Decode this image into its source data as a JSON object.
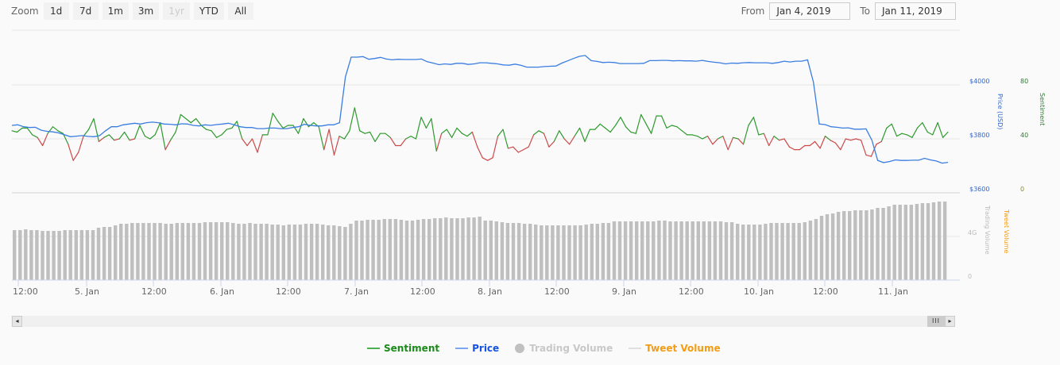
{
  "range_selector": {
    "zoom_label": "Zoom",
    "buttons": [
      {
        "label": "1d",
        "disabled": false
      },
      {
        "label": "7d",
        "disabled": false
      },
      {
        "label": "1m",
        "disabled": false
      },
      {
        "label": "3m",
        "disabled": false
      },
      {
        "label": "1yr",
        "disabled": true
      },
      {
        "label": "YTD",
        "disabled": false
      },
      {
        "label": "All",
        "disabled": false
      }
    ]
  },
  "date_range": {
    "from_label": "From",
    "from_value": "Jan 4, 2019",
    "to_label": "To",
    "to_value": "Jan 11, 2019"
  },
  "axes": {
    "price_title": "Price (USD)",
    "price_ticks": [
      "$4000",
      "$3800",
      "$3600"
    ],
    "sentiment_title": "Sentiment",
    "sentiment_ticks": [
      "80",
      "40",
      "0"
    ],
    "trading_volume_title": "Trading Volume",
    "tweet_volume_title": "Tweet Volume",
    "volume_ticks": [
      "4G",
      "0"
    ],
    "x_ticks": [
      "12:00",
      "5. Jan",
      "12:00",
      "6. Jan",
      "12:00",
      "7. Jan",
      "12:00",
      "8. Jan",
      "12:00",
      "9. Jan",
      "12:00",
      "10. Jan",
      "12:00",
      "11. Jan"
    ]
  },
  "scrollbar": {
    "left_arrow": "◂",
    "thumb_grip": "III",
    "right_arrow": "▸"
  },
  "legend": [
    {
      "label": "Sentiment",
      "color": "#1a8a1a",
      "symbol": "#4caf50"
    },
    {
      "label": "Price",
      "color": "#1652e0",
      "symbol": "#7ca7ee"
    },
    {
      "label": "Trading Volume",
      "color": "#c8c8c8",
      "symbol": "#c0c0c0"
    },
    {
      "label": "Tweet Volume",
      "color": "#f39c12",
      "symbol": "#e0e0e0"
    }
  ],
  "colors": {
    "sentiment_positive": "#2e9a2e",
    "sentiment_negative": "#cc4a4a",
    "price": "#3a7de0",
    "volume_bar": "#bfbfbf",
    "price_axis": "#3366cc",
    "sentiment_axis": "#2e7d32",
    "tweet_axis": "#f39c12",
    "grid": "#e6e6e6"
  },
  "chart_data": {
    "type": "line",
    "title": "",
    "x_range": [
      "Jan 4, 2019 12:00",
      "Jan 11, 2019 ~20:00"
    ],
    "x_tick_labels": [
      "12:00",
      "5. Jan",
      "12:00",
      "6. Jan",
      "12:00",
      "7. Jan",
      "12:00",
      "8. Jan",
      "12:00",
      "9. Jan",
      "12:00",
      "10. Jan",
      "12:00",
      "11. Jan"
    ],
    "series": [
      {
        "name": "Price",
        "axis": "Price (USD)",
        "ylim": [
          3600,
          4200
        ],
        "values": [
          3850,
          3852,
          3845,
          3842,
          3843,
          3832,
          3828,
          3826,
          3822,
          3815,
          3808,
          3810,
          3812,
          3809,
          3808,
          3812,
          3830,
          3845,
          3845,
          3852,
          3855,
          3858,
          3855,
          3860,
          3862,
          3860,
          3855,
          3854,
          3852,
          3856,
          3855,
          3850,
          3848,
          3852,
          3850,
          3853,
          3855,
          3858,
          3852,
          3845,
          3842,
          3842,
          3838,
          3838,
          3840,
          3840,
          3838,
          3838,
          3842,
          3845,
          3854,
          3850,
          3848,
          3848,
          3852,
          3852,
          3860,
          4030,
          4103,
          4103,
          4105,
          4095,
          4098,
          4102,
          4096,
          4093,
          4095,
          4094,
          4094,
          4094,
          4096,
          4086,
          4081,
          4075,
          4078,
          4076,
          4080,
          4080,
          4076,
          4078,
          4082,
          4082,
          4080,
          4078,
          4074,
          4073,
          4077,
          4073,
          4066,
          4066,
          4066,
          4068,
          4069,
          4070,
          4081,
          4089,
          4098,
          4106,
          4109,
          4090,
          4087,
          4083,
          4084,
          4083,
          4079,
          4079,
          4079,
          4079,
          4080,
          4090,
          4090,
          4091,
          4091,
          4089,
          4090,
          4089,
          4089,
          4088,
          4091,
          4087,
          4084,
          4082,
          4078,
          4081,
          4080,
          4082,
          4083,
          4082,
          4082,
          4082,
          4080,
          4083,
          4088,
          4085,
          4088,
          4088,
          4093,
          4010,
          3855,
          3853,
          3845,
          3843,
          3840,
          3841,
          3836,
          3836,
          3837,
          3795,
          3720,
          3712,
          3716,
          3722,
          3720,
          3720,
          3721,
          3721,
          3728,
          3722,
          3718,
          3710,
          3713
        ]
      },
      {
        "name": "Sentiment",
        "axis": "Sentiment",
        "ylim": [
          0,
          100
        ],
        "values": [
          46,
          45,
          48,
          48,
          43,
          41,
          35,
          44,
          49,
          46,
          44,
          36,
          24,
          30,
          42,
          47,
          55,
          38,
          41,
          43,
          39,
          40,
          45,
          39,
          40,
          50,
          42,
          40,
          43,
          52,
          32,
          39,
          45,
          58,
          55,
          52,
          55,
          50,
          47,
          46,
          41,
          43,
          47,
          48,
          53,
          40,
          35,
          40,
          30,
          43,
          43,
          59,
          53,
          48,
          50,
          50,
          44,
          55,
          49,
          52,
          49,
          32,
          47,
          28,
          42,
          40,
          46,
          63,
          46,
          44,
          45,
          38,
          44,
          44,
          41,
          35,
          35,
          40,
          42,
          40,
          56,
          48,
          55,
          31,
          44,
          47,
          41,
          48,
          44,
          42,
          45,
          34,
          26,
          24,
          26,
          42,
          47,
          33,
          34,
          30,
          32,
          34,
          43,
          46,
          44,
          34,
          38,
          46,
          40,
          36,
          42,
          48,
          38,
          47,
          47,
          51,
          48,
          45,
          50,
          56,
          49,
          45,
          44,
          58,
          51,
          44,
          57,
          57,
          48,
          50,
          49,
          46,
          43,
          43,
          42,
          40,
          42,
          36,
          40,
          42,
          32,
          41,
          40,
          36,
          50,
          56,
          43,
          44,
          35,
          42,
          39,
          40,
          34,
          32,
          32,
          35,
          35,
          38,
          33,
          42,
          39,
          37,
          32,
          40,
          39,
          40,
          39,
          28,
          27,
          36,
          38,
          48,
          51,
          42,
          44,
          43,
          41,
          48,
          52,
          45,
          43,
          52,
          41,
          45
        ]
      },
      {
        "name": "Trading Volume",
        "axis": "Trading Volume",
        "ylim_label": [
          "0",
          "4G"
        ],
        "values_relative": [
          0.63,
          0.63,
          0.64,
          0.63,
          0.63,
          0.62,
          0.62,
          0.62,
          0.62,
          0.63,
          0.63,
          0.63,
          0.63,
          0.63,
          0.63,
          0.66,
          0.67,
          0.67,
          0.69,
          0.71,
          0.71,
          0.72,
          0.72,
          0.72,
          0.72,
          0.72,
          0.72,
          0.71,
          0.71,
          0.72,
          0.72,
          0.72,
          0.72,
          0.72,
          0.73,
          0.73,
          0.73,
          0.73,
          0.73,
          0.72,
          0.71,
          0.71,
          0.72,
          0.71,
          0.71,
          0.71,
          0.7,
          0.7,
          0.69,
          0.7,
          0.7,
          0.7,
          0.71,
          0.71,
          0.71,
          0.7,
          0.69,
          0.69,
          0.68,
          0.67,
          0.71,
          0.75,
          0.75,
          0.76,
          0.76,
          0.76,
          0.77,
          0.77,
          0.77,
          0.76,
          0.75,
          0.75,
          0.76,
          0.77,
          0.77,
          0.78,
          0.78,
          0.79,
          0.78,
          0.78,
          0.78,
          0.79,
          0.79,
          0.8,
          0.75,
          0.75,
          0.74,
          0.73,
          0.72,
          0.72,
          0.72,
          0.71,
          0.71,
          0.7,
          0.69,
          0.69,
          0.69,
          0.69,
          0.69,
          0.69,
          0.69,
          0.69,
          0.7,
          0.71,
          0.71,
          0.72,
          0.72,
          0.74,
          0.74,
          0.74,
          0.74,
          0.74,
          0.74,
          0.74,
          0.74,
          0.75,
          0.75,
          0.74,
          0.74,
          0.74,
          0.74,
          0.74,
          0.74,
          0.74,
          0.74,
          0.74,
          0.74,
          0.73,
          0.73,
          0.71,
          0.7,
          0.7,
          0.7,
          0.7,
          0.71,
          0.72,
          0.72,
          0.72,
          0.72,
          0.72,
          0.72,
          0.73,
          0.75,
          0.77,
          0.81,
          0.83,
          0.84,
          0.86,
          0.87,
          0.87,
          0.88,
          0.88,
          0.88,
          0.89,
          0.91,
          0.91,
          0.93,
          0.95,
          0.95,
          0.95,
          0.95,
          0.96,
          0.97,
          0.97,
          0.98,
          0.99,
          0.99
        ]
      },
      {
        "name": "Tweet Volume",
        "axis": "Tweet Volume",
        "values": []
      }
    ],
    "axes_ticks": {
      "price": [
        "$3600",
        "$3800",
        "$4000"
      ],
      "sentiment": [
        "0",
        "40",
        "80"
      ],
      "volume": [
        "0",
        "4G"
      ]
    },
    "grid": true,
    "legend_position": "bottom-center"
  }
}
